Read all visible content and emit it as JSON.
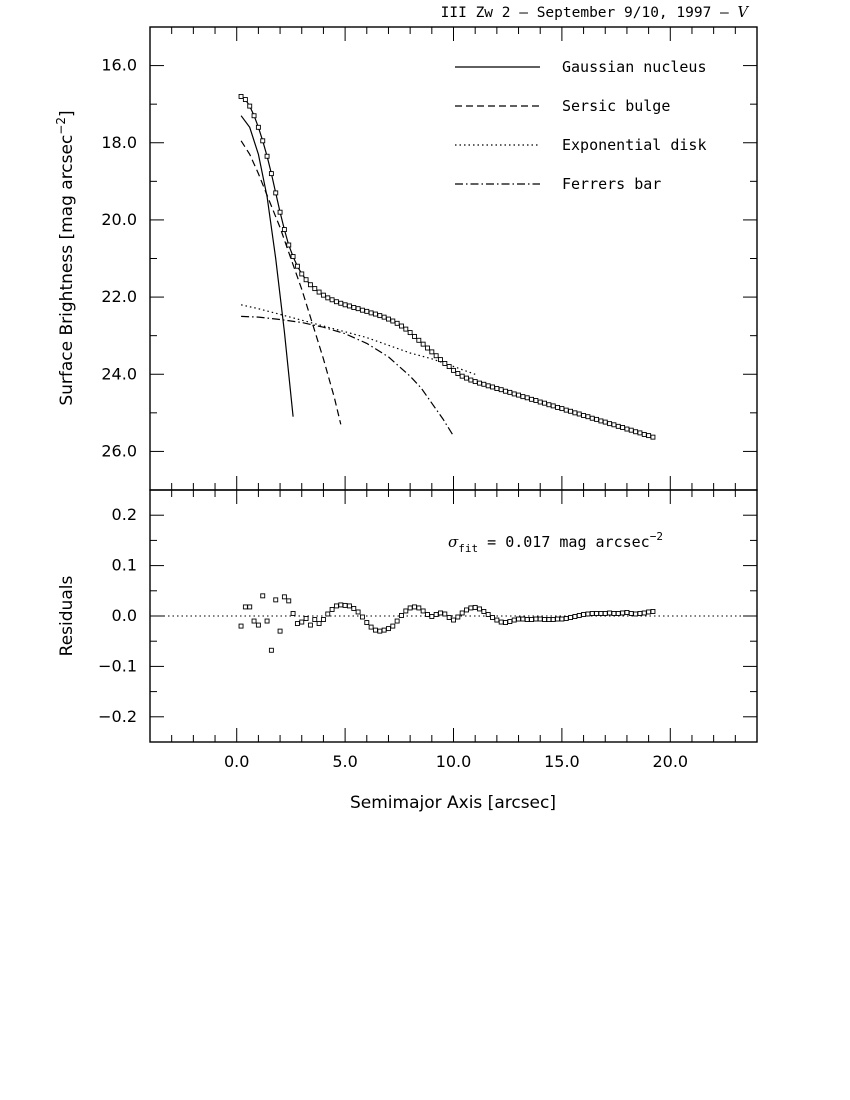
{
  "title": {
    "object": "III Zw 2",
    "date": "September 9/10, 1997",
    "band": "V",
    "separator": "–"
  },
  "chart_data": [
    {
      "type": "line",
      "panel": "surface-brightness",
      "ylabel_prefix": "Surface Brightness [mag arcsec",
      "ylabel_exp": "−2",
      "ylabel_suffix": "]",
      "xlim": [
        -4,
        24
      ],
      "ylim": [
        27.0,
        15.0
      ],
      "y_inverted": true,
      "yticks": [
        16.0,
        18.0,
        20.0,
        22.0,
        24.0,
        26.0
      ],
      "ytick_labels": [
        "16.0",
        "18.0",
        "20.0",
        "22.0",
        "24.0",
        "26.0"
      ],
      "legend_position": "top-right",
      "series": [
        {
          "name": "Gaussian nucleus",
          "style": "solid",
          "x": [
            0.2,
            0.6,
            1.0,
            1.4,
            1.8,
            2.2,
            2.6
          ],
          "y": [
            17.3,
            17.6,
            18.3,
            19.4,
            21.0,
            22.9,
            25.1
          ]
        },
        {
          "name": "Sersic bulge",
          "style": "dashed",
          "x": [
            0.2,
            0.6,
            1.0,
            1.5,
            2.0,
            2.5,
            3.0,
            3.5,
            4.0,
            4.5,
            4.8
          ],
          "y": [
            17.95,
            18.3,
            18.8,
            19.5,
            20.2,
            21.0,
            21.8,
            22.7,
            23.6,
            24.6,
            25.3
          ]
        },
        {
          "name": "Exponential disk",
          "style": "dotted",
          "x": [
            0.2,
            1.0,
            2.0,
            3.0,
            4.0,
            5.0,
            6.0,
            7.0,
            8.0,
            9.0,
            10.0,
            11.0
          ],
          "y": [
            22.2,
            22.3,
            22.45,
            22.6,
            22.75,
            22.9,
            23.05,
            23.25,
            23.45,
            23.6,
            23.8,
            24.0
          ]
        },
        {
          "name": "Ferrers bar",
          "style": "dashdot",
          "x": [
            0.2,
            1.0,
            2.0,
            3.0,
            4.0,
            5.0,
            6.0,
            7.0,
            8.0,
            8.5,
            9.0,
            9.5,
            10.0
          ],
          "y": [
            22.5,
            22.52,
            22.58,
            22.66,
            22.78,
            22.95,
            23.2,
            23.55,
            24.05,
            24.35,
            24.75,
            25.15,
            25.6
          ]
        },
        {
          "name": "",
          "style": "markers+line",
          "x": [
            0.2,
            0.4,
            0.6,
            0.8,
            1.0,
            1.2,
            1.4,
            1.6,
            1.8,
            2.0,
            2.2,
            2.4,
            2.6,
            2.8,
            3.0,
            3.2,
            3.4,
            3.6,
            3.8,
            4.0,
            4.2,
            4.4,
            4.6,
            4.8,
            5.0,
            5.2,
            5.4,
            5.6,
            5.8,
            6.0,
            6.2,
            6.4,
            6.6,
            6.8,
            7.0,
            7.2,
            7.4,
            7.6,
            7.8,
            8.0,
            8.2,
            8.4,
            8.6,
            8.8,
            9.0,
            9.2,
            9.4,
            9.6,
            9.8,
            10.0,
            10.2,
            10.4,
            10.6,
            10.8,
            11.0,
            11.2,
            11.4,
            11.6,
            11.8,
            12.0,
            12.2,
            12.4,
            12.6,
            12.8,
            13.0,
            13.2,
            13.4,
            13.6,
            13.8,
            14.0,
            14.2,
            14.4,
            14.6,
            14.8,
            15.0,
            15.2,
            15.4,
            15.6,
            15.8,
            16.0,
            16.2,
            16.4,
            16.6,
            16.8,
            17.0,
            17.2,
            17.4,
            17.6,
            17.8,
            18.0,
            18.2,
            18.4,
            18.6,
            18.8,
            19.0,
            19.2
          ],
          "y": [
            16.8,
            16.88,
            17.05,
            17.3,
            17.6,
            17.95,
            18.35,
            18.8,
            19.3,
            19.8,
            20.25,
            20.65,
            20.95,
            21.2,
            21.4,
            21.55,
            21.68,
            21.78,
            21.87,
            21.95,
            22.02,
            22.07,
            22.12,
            22.16,
            22.2,
            22.23,
            22.27,
            22.3,
            22.34,
            22.37,
            22.41,
            22.44,
            22.48,
            22.52,
            22.57,
            22.62,
            22.68,
            22.75,
            22.83,
            22.92,
            23.02,
            23.12,
            23.22,
            23.32,
            23.42,
            23.52,
            23.62,
            23.72,
            23.8,
            23.9,
            23.98,
            24.05,
            24.1,
            24.15,
            24.19,
            24.23,
            24.26,
            24.3,
            24.33,
            24.37,
            24.4,
            24.44,
            24.47,
            24.51,
            24.54,
            24.58,
            24.61,
            24.65,
            24.68,
            24.72,
            24.75,
            24.79,
            24.82,
            24.86,
            24.89,
            24.93,
            24.96,
            25.0,
            25.03,
            25.07,
            25.1,
            25.14,
            25.17,
            25.21,
            25.24,
            25.28,
            25.31,
            25.35,
            25.38,
            25.42,
            25.45,
            25.49,
            25.52,
            25.56,
            25.59,
            25.63
          ]
        }
      ]
    },
    {
      "type": "scatter",
      "panel": "residuals",
      "ylabel": "Residuals",
      "xlabel": "Semimajor Axis [arcsec]",
      "xlim": [
        -4,
        24
      ],
      "ylim": [
        -0.25,
        0.25
      ],
      "xticks": [
        0.0,
        5.0,
        10.0,
        15.0,
        20.0
      ],
      "xtick_labels": [
        "0.0",
        "5.0",
        "10.0",
        "15.0",
        "20.0"
      ],
      "yticks": [
        0.2,
        0.1,
        0.0,
        -0.1,
        -0.2
      ],
      "ytick_labels": [
        "0.2",
        "0.1",
        "0.0",
        "−0.1",
        "−0.2"
      ],
      "zero_line": true,
      "annotation": {
        "symbol": "σ",
        "sub": "fit",
        "text": " = 0.017 mag arcsec",
        "exp": "−2"
      },
      "series": [
        {
          "name": "",
          "x": [
            0.2,
            0.4,
            0.6,
            0.8,
            1.0,
            1.2,
            1.4,
            1.6,
            1.8,
            2.0,
            2.2,
            2.4,
            2.6,
            2.8,
            3.0,
            3.2,
            3.4,
            3.6,
            3.8,
            4.0,
            4.2,
            4.4,
            4.6,
            4.8,
            5.0,
            5.2,
            5.4,
            5.6,
            5.8,
            6.0,
            6.2,
            6.4,
            6.6,
            6.8,
            7.0,
            7.2,
            7.4,
            7.6,
            7.8,
            8.0,
            8.2,
            8.4,
            8.6,
            8.8,
            9.0,
            9.2,
            9.4,
            9.6,
            9.8,
            10.0,
            10.2,
            10.4,
            10.6,
            10.8,
            11.0,
            11.2,
            11.4,
            11.6,
            11.8,
            12.0,
            12.2,
            12.4,
            12.6,
            12.8,
            13.0,
            13.2,
            13.4,
            13.6,
            13.8,
            14.0,
            14.2,
            14.4,
            14.6,
            14.8,
            15.0,
            15.2,
            15.4,
            15.6,
            15.8,
            16.0,
            16.2,
            16.4,
            16.6,
            16.8,
            17.0,
            17.2,
            17.4,
            17.6,
            17.8,
            18.0,
            18.2,
            18.4,
            18.6,
            18.8,
            19.0,
            19.2
          ],
          "y": [
            -0.02,
            0.018,
            0.018,
            -0.01,
            -0.018,
            0.04,
            -0.01,
            -0.068,
            0.032,
            -0.03,
            0.038,
            0.03,
            0.005,
            -0.015,
            -0.012,
            -0.005,
            -0.018,
            -0.007,
            -0.015,
            -0.007,
            0.004,
            0.013,
            0.02,
            0.022,
            0.021,
            0.02,
            0.015,
            0.008,
            -0.002,
            -0.013,
            -0.022,
            -0.028,
            -0.03,
            -0.028,
            -0.025,
            -0.02,
            -0.01,
            0.001,
            0.01,
            0.016,
            0.018,
            0.016,
            0.01,
            0.003,
            -0.001,
            0.003,
            0.006,
            0.004,
            -0.003,
            -0.008,
            -0.002,
            0.006,
            0.012,
            0.016,
            0.017,
            0.014,
            0.009,
            0.003,
            -0.003,
            -0.008,
            -0.012,
            -0.013,
            -0.011,
            -0.008,
            -0.006,
            -0.006,
            -0.007,
            -0.007,
            -0.006,
            -0.006,
            -0.007,
            -0.007,
            -0.007,
            -0.006,
            -0.006,
            -0.005,
            -0.003,
            -0.001,
            0.001,
            0.003,
            0.004,
            0.005,
            0.005,
            0.005,
            0.005,
            0.006,
            0.005,
            0.005,
            0.006,
            0.007,
            0.005,
            0.004,
            0.005,
            0.006,
            0.008,
            0.009
          ]
        }
      ]
    }
  ]
}
